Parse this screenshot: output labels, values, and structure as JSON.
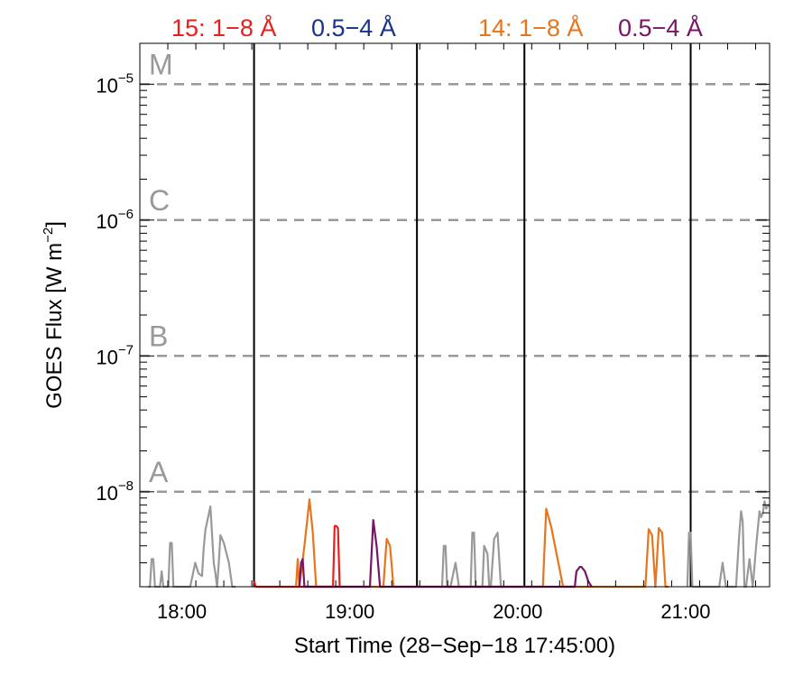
{
  "chart_data": {
    "type": "line",
    "ylabel_text": "GOES Flux [W m",
    "ylabel_unit_exp": "−2",
    "ylabel_close": "]",
    "xlabel": "Start Time (28−Sep−18 17:45:00)",
    "y_scale": "log",
    "ylim": [
      2e-09,
      2e-05
    ],
    "xlim_hours": [
      17.75,
      21.5
    ],
    "x_ticks": [
      {
        "hour": 18,
        "label": "18:00"
      },
      {
        "hour": 19,
        "label": "19:00"
      },
      {
        "hour": 20,
        "label": "20:00"
      },
      {
        "hour": 21,
        "label": "21:00"
      }
    ],
    "y_ticks": [
      {
        "value": 1e-08,
        "base": "10",
        "exp": "−8"
      },
      {
        "value": 1e-07,
        "base": "10",
        "exp": "−7"
      },
      {
        "value": 1e-06,
        "base": "10",
        "exp": "−6"
      },
      {
        "value": 1e-05,
        "base": "10",
        "exp": "−5"
      }
    ],
    "flare_classes": [
      {
        "label": "A",
        "value": 1e-08
      },
      {
        "label": "B",
        "value": 1e-07
      },
      {
        "label": "C",
        "value": 1e-06
      },
      {
        "label": "M",
        "value": 1e-05
      }
    ],
    "legend": [
      {
        "text": "15: 1−8 Å",
        "color": "#e8201c"
      },
      {
        "text": "0.5−4 Å",
        "color": "#17338c"
      },
      {
        "text": "14: 1−8 Å",
        "color": "#e8741c"
      },
      {
        "text": "0.5−4 Å",
        "color": "#7a1466"
      }
    ],
    "vertical_lines_hours": [
      18.43,
      19.4,
      20.04,
      21.03
    ],
    "grid": "dashed horizontal at class thresholds",
    "series": [
      {
        "color": "#999999",
        "x": [
          17.8,
          17.81,
          17.82,
          17.83,
          17.84,
          17.87,
          17.88,
          17.89,
          17.9,
          17.92,
          17.93,
          17.94,
          17.95,
          17.96,
          17.97,
          17.99,
          18.0,
          18.02,
          18.05,
          18.08,
          18.1,
          18.12,
          18.13,
          18.14,
          18.17,
          18.19,
          18.2,
          18.21,
          18.22,
          18.23,
          18.25,
          18.28,
          18.3,
          18.31,
          18.32
        ],
        "y": [
          2e-09,
          2e-09,
          3.2e-09,
          3.2e-09,
          2e-09,
          2e-09,
          2.6e-09,
          2e-09,
          2e-09,
          2e-09,
          4.2e-09,
          4.2e-09,
          2e-09,
          2e-09,
          2e-09,
          2e-09,
          2e-09,
          2e-09,
          2e-09,
          3e-09,
          2.5e-09,
          2.4e-09,
          3.8e-09,
          5.2e-09,
          7.8e-09,
          3e-09,
          2.5e-09,
          2e-09,
          3e-09,
          4.8e-09,
          4.2e-09,
          3e-09,
          2e-09,
          2e-09,
          2e-09
        ]
      },
      {
        "color": "#999999",
        "x": [
          19.55,
          19.56,
          19.57,
          19.58,
          19.6,
          19.63,
          19.65,
          19.67,
          19.7,
          19.72,
          19.73,
          19.74,
          19.75,
          19.77,
          19.79,
          19.8,
          19.82,
          19.83,
          19.84,
          19.86,
          19.88,
          19.9,
          19.92
        ],
        "y": [
          2e-09,
          4e-09,
          4e-09,
          2e-09,
          2e-09,
          3e-09,
          2e-09,
          2e-09,
          2e-09,
          2e-09,
          5e-09,
          5e-09,
          2e-09,
          2e-09,
          2e-09,
          4e-09,
          3.5e-09,
          2e-09,
          2e-09,
          4.5e-09,
          5e-09,
          2e-09,
          2e-09
        ]
      },
      {
        "color": "#999999",
        "x": [
          21.01,
          21.02,
          21.03,
          21.04,
          21.06,
          21.08,
          21.1,
          21.2,
          21.22,
          21.24,
          21.26,
          21.28,
          21.3,
          21.32,
          21.33,
          21.34,
          21.35,
          21.36,
          21.38,
          21.4,
          21.42,
          21.44,
          21.45,
          21.46,
          21.47,
          21.48,
          21.49,
          21.5
        ],
        "y": [
          2e-09,
          5e-09,
          5e-09,
          2e-09,
          2e-09,
          2e-09,
          2e-09,
          2e-09,
          3e-09,
          2e-09,
          2e-09,
          2e-09,
          2e-09,
          5e-09,
          7.2e-09,
          6e-09,
          2e-09,
          2e-09,
          3.2e-09,
          2e-09,
          4e-09,
          7.2e-09,
          6.5e-09,
          7e-09,
          8.5e-09,
          7.5e-09,
          8e-09,
          7.8e-09
        ]
      },
      {
        "color": "#e8201c",
        "x": [
          18.43,
          18.44,
          18.9,
          18.91,
          18.92,
          18.93,
          18.94,
          18.95
        ],
        "y": [
          2.2e-09,
          2e-09,
          2e-09,
          5.6e-09,
          5.6e-09,
          5.4e-09,
          2e-09,
          2e-09
        ]
      },
      {
        "color": "#e8741c",
        "x": [
          18.68,
          18.69,
          18.7,
          18.73,
          18.76,
          18.78,
          18.8,
          18.82,
          19.2,
          19.22,
          19.24,
          19.26,
          20.15,
          20.17,
          20.2,
          20.27,
          20.3,
          20.76,
          20.78,
          20.8,
          20.82,
          20.84,
          20.86,
          20.88,
          20.9
        ],
        "y": [
          2e-09,
          3.2e-09,
          2e-09,
          4e-09,
          8.8e-09,
          5e-09,
          2e-09,
          2e-09,
          2e-09,
          4.5e-09,
          4e-09,
          2e-09,
          2e-09,
          7.5e-09,
          5.5e-09,
          2e-09,
          2e-09,
          2e-09,
          5.3e-09,
          4.8e-09,
          2e-09,
          5.4e-09,
          5e-09,
          2e-09,
          2e-09
        ]
      },
      {
        "color": "#7a1466",
        "x": [
          18.7,
          18.71,
          18.72,
          18.73,
          19.12,
          19.14,
          19.16,
          19.18,
          20.34,
          20.35,
          20.37,
          20.38,
          20.4,
          20.42,
          20.44
        ],
        "y": [
          2e-09,
          3e-09,
          3.2e-09,
          2e-09,
          2e-09,
          6.2e-09,
          4e-09,
          2e-09,
          2e-09,
          2.6e-09,
          2.8e-09,
          2.8e-09,
          2.6e-09,
          2.2e-09,
          2e-09
        ]
      }
    ]
  }
}
